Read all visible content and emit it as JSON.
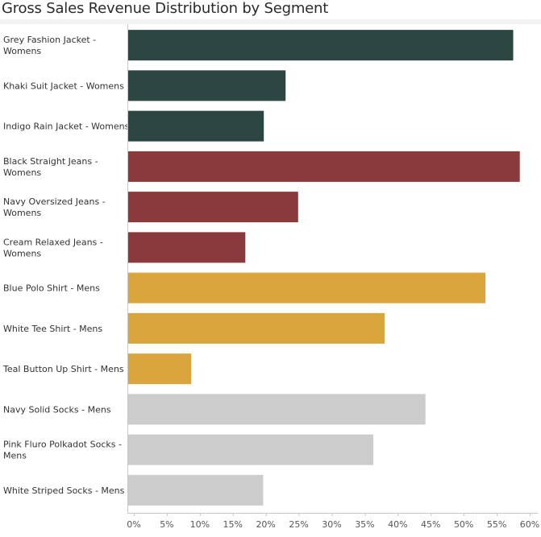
{
  "chart_data": {
    "type": "bar",
    "orientation": "horizontal",
    "title": "Gross Sales Revenue Distribution by Segment",
    "xlabel": "",
    "ylabel": "",
    "xlim": [
      0,
      60
    ],
    "x_ticks": [
      "0%",
      "5%",
      "10%",
      "15%",
      "20%",
      "25%",
      "30%",
      "35%",
      "40%",
      "45%",
      "50%",
      "55%",
      "60%"
    ],
    "grid": false,
    "categories": [
      [
        "Grey Fashion Jacket -",
        "Womens"
      ],
      [
        "Khaki Suit Jacket - Womens"
      ],
      [
        "Indigo Rain Jacket - Womens"
      ],
      [
        "Black Straight Jeans -",
        "Womens"
      ],
      [
        "Navy Oversized Jeans -",
        "Womens"
      ],
      [
        "Cream Relaxed Jeans -",
        "Womens"
      ],
      [
        "Blue Polo Shirt - Mens"
      ],
      [
        "White Tee Shirt - Mens"
      ],
      [
        "Teal Button Up Shirt - Mens"
      ],
      [
        "Navy Solid Socks - Mens"
      ],
      [
        "Pink Fluro Polkadot Socks -",
        "Mens"
      ],
      [
        "White Striped Socks - Mens"
      ]
    ],
    "values": [
      57.5,
      23.0,
      19.7,
      58.5,
      24.9,
      16.9,
      53.3,
      38.0,
      8.7,
      44.2,
      36.3,
      19.6
    ],
    "colors": [
      "#2c4742",
      "#2c4742",
      "#2c4742",
      "#8b3a3b",
      "#8b3a3b",
      "#8b3a3b",
      "#dba53d",
      "#dba53d",
      "#dba53d",
      "#cccccc",
      "#cccccc",
      "#cccccc"
    ]
  }
}
